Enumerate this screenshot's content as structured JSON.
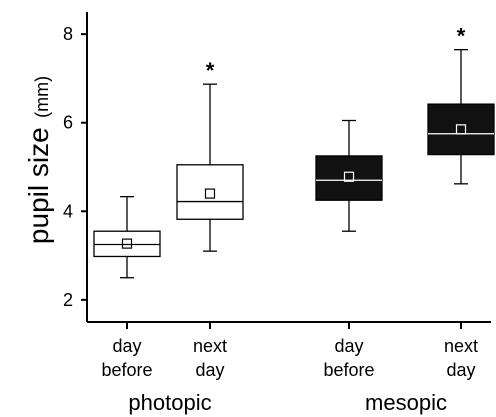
{
  "chart_data": {
    "type": "box",
    "ylabel": "pupil size",
    "ylabel_unit": "(mm)",
    "ylim": [
      1.5,
      8.5
    ],
    "yticks": [
      2,
      4,
      6,
      8
    ],
    "grid": false,
    "groups": [
      "photopic",
      "mesopic"
    ],
    "series": [
      {
        "category": [
          "day",
          "before"
        ],
        "group": "photopic",
        "fill": "white",
        "min": 2.5,
        "q1": 2.98,
        "median": 3.25,
        "q3": 3.55,
        "max": 4.33,
        "mean": 3.27,
        "annotation": ""
      },
      {
        "category": [
          "next",
          "day"
        ],
        "group": "photopic",
        "fill": "white",
        "min": 3.1,
        "q1": 3.82,
        "median": 4.22,
        "q3": 5.05,
        "max": 6.87,
        "mean": 4.4,
        "annotation": "*"
      },
      {
        "category": [
          "day",
          "before"
        ],
        "group": "mesopic",
        "fill": "black",
        "min": 3.55,
        "q1": 4.25,
        "median": 4.7,
        "q3": 5.25,
        "max": 6.05,
        "mean": 4.78,
        "annotation": ""
      },
      {
        "category": [
          "next",
          "day"
        ],
        "group": "mesopic",
        "fill": "black",
        "min": 4.62,
        "q1": 5.28,
        "median": 5.75,
        "q3": 6.42,
        "max": 7.65,
        "mean": 5.85,
        "annotation": "*"
      }
    ],
    "colors": {
      "axis": "#000000",
      "filled_box": "#111111",
      "open_box": "#ffffff"
    }
  }
}
